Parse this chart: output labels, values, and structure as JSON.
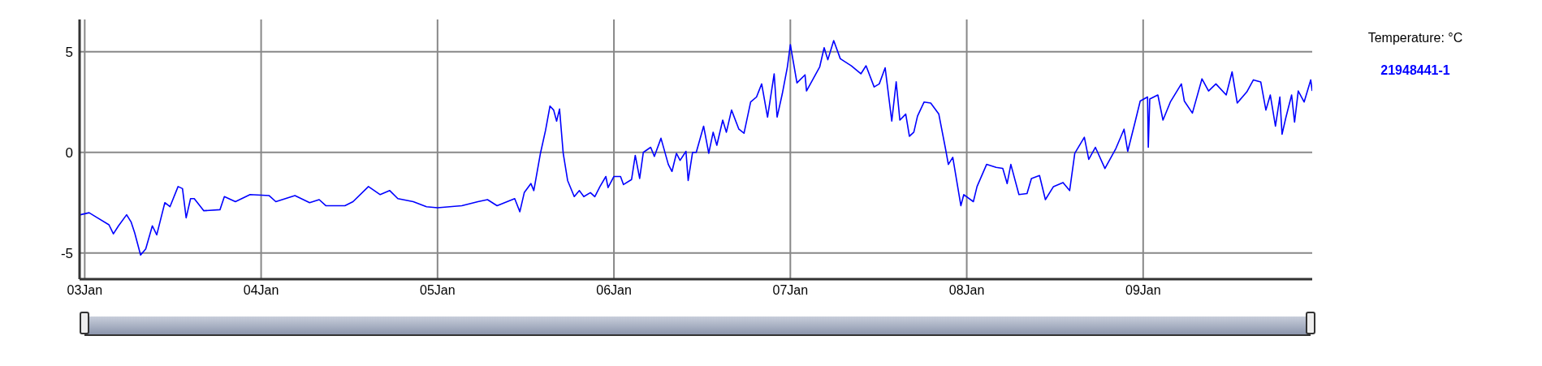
{
  "chart_data": {
    "type": "line",
    "legend_title": "Temperature: °C",
    "x": [
      "--01-02T23:24",
      "--01-03T00:36",
      "--01-03T01:30",
      "--01-03T03:18",
      "--01-03T03:54",
      "--01-03T04:36",
      "--01-03T05:42",
      "--01-03T06:18",
      "--01-03T06:48",
      "--01-03T07:36",
      "--01-03T08:18",
      "--01-03T09:12",
      "--01-03T09:48",
      "--01-03T10:54",
      "--01-03T11:36",
      "--01-03T12:42",
      "--01-03T13:18",
      "--01-03T13:48",
      "--01-03T14:24",
      "--01-03T14:54",
      "--01-03T16:12",
      "--01-03T18:24",
      "--01-03T19:00",
      "--01-03T20:30",
      "--01-03T22:30",
      "--01-04T01:06",
      "--01-04T02:00",
      "--01-04T04:36",
      "--01-04T06:36",
      "--01-04T07:54",
      "--01-04T08:48",
      "--01-04T11:24",
      "--01-04T12:30",
      "--01-04T14:36",
      "--01-04T16:12",
      "--01-04T17:30",
      "--01-04T18:36",
      "--01-04T20:42",
      "--01-04T22:30",
      "--01-05T00:00",
      "--01-05T03:18",
      "--01-05T05:30",
      "--01-05T06:48",
      "--01-05T08:06",
      "--01-05T10:30",
      "--01-05T11:12",
      "--01-05T11:48",
      "--01-05T12:42",
      "--01-05T13:06",
      "--01-05T14:00",
      "--01-05T14:42",
      "--01-05T15:18",
      "--01-05T15:48",
      "--01-05T16:12",
      "--01-05T16:36",
      "--01-05T17:06",
      "--01-05T17:42",
      "--01-05T18:36",
      "--01-05T19:18",
      "--01-05T19:54",
      "--01-05T20:48",
      "--01-05T21:24",
      "--01-05T22:06",
      "--01-05T22:54",
      "--01-05T23:12",
      "--01-06T00:00",
      "--01-06T00:54",
      "--01-06T01:18",
      "--01-06T02:24",
      "--01-06T02:54",
      "--01-06T03:30",
      "--01-06T04:00",
      "--01-06T05:00",
      "--01-06T05:30",
      "--01-06T06:24",
      "--01-06T07:24",
      "--01-06T07:54",
      "--01-06T08:30",
      "--01-06T09:00",
      "--01-06T09:48",
      "--01-06T10:06",
      "--01-06T10:42",
      "--01-06T11:12",
      "--01-06T12:12",
      "--01-06T12:54",
      "--01-06T13:30",
      "--01-06T14:00",
      "--01-06T14:48",
      "--01-06T15:18",
      "--01-06T16:00",
      "--01-06T17:00",
      "--01-06T17:42",
      "--01-06T18:36",
      "--01-06T19:24",
      "--01-06T20:06",
      "--01-06T20:54",
      "--01-06T21:48",
      "--01-06T22:12",
      "--01-06T22:54",
      "--01-06T23:36",
      "--01-07T00:00",
      "--01-07T00:54",
      "--01-07T02:00",
      "--01-07T02:12",
      "--01-07T04:00",
      "--01-07T04:36",
      "--01-07T05:06",
      "--01-07T05:54",
      "--01-07T06:48",
      "--01-07T08:18",
      "--01-07T09:36",
      "--01-07T10:18",
      "--01-07T11:24",
      "--01-07T12:06",
      "--01-07T12:54",
      "--01-07T13:48",
      "--01-07T14:24",
      "--01-07T14:54",
      "--01-07T15:42",
      "--01-07T16:12",
      "--01-07T16:48",
      "--01-07T17:18",
      "--01-07T18:12",
      "--01-07T19:06",
      "--01-07T20:12",
      "--01-07T21:06",
      "--01-07T21:30",
      "--01-07T22:06",
      "--01-07T23:12",
      "--01-07T23:36",
      "--01-08T00:54",
      "--01-08T01:24",
      "--01-08T02:42",
      "--01-08T04:00",
      "--01-08T04:54",
      "--01-08T05:30",
      "--01-08T06:00",
      "--01-08T07:06",
      "--01-08T08:12",
      "--01-08T08:48",
      "--01-08T09:54",
      "--01-08T10:42",
      "--01-08T11:48",
      "--01-08T13:06",
      "--01-08T14:00",
      "--01-08T14:42",
      "--01-08T16:00",
      "--01-08T16:36",
      "--01-08T17:30",
      "--01-08T18:48",
      "--01-08T20:18",
      "--01-08T21:24",
      "--01-08T21:54",
      "--01-08T22:54",
      "--01-08T23:36",
      "--01-09T00:36",
      "--01-09T00:42",
      "--01-09T00:54",
      "--01-09T02:00",
      "--01-09T02:42",
      "--01-09T03:42",
      "--01-09T05:12",
      "--01-09T05:36",
      "--01-09T06:42",
      "--01-09T08:00",
      "--01-09T08:54",
      "--01-09T09:54",
      "--01-09T11:18",
      "--01-09T12:06",
      "--01-09T12:48",
      "--01-09T14:06",
      "--01-09T15:00",
      "--01-09T16:00",
      "--01-09T16:42",
      "--01-09T17:18",
      "--01-09T18:00",
      "--01-09T18:36",
      "--01-09T18:54",
      "--01-09T19:24",
      "--01-09T20:12",
      "--01-09T20:36",
      "--01-09T21:06",
      "--01-09T21:54",
      "--01-09T22:48",
      "--01-09T23:00"
    ],
    "series": [
      {
        "name": "21948441-1",
        "color": "#0000ff",
        "values": [
          -3.1,
          -3.0,
          -3.2,
          -3.6,
          -4.05,
          -3.65,
          -3.1,
          -3.45,
          -4.0,
          -5.1,
          -4.8,
          -3.65,
          -4.1,
          -2.5,
          -2.7,
          -1.7,
          -1.8,
          -3.25,
          -2.3,
          -2.3,
          -2.9,
          -2.85,
          -2.2,
          -2.45,
          -2.1,
          -2.15,
          -2.45,
          -2.15,
          -2.5,
          -2.35,
          -2.65,
          -2.65,
          -2.45,
          -1.7,
          -2.1,
          -1.9,
          -2.3,
          -2.45,
          -2.7,
          -2.75,
          -2.65,
          -2.45,
          -2.35,
          -2.65,
          -2.3,
          -2.95,
          -2.0,
          -1.55,
          -1.9,
          -0.05,
          1.1,
          2.3,
          2.1,
          1.55,
          2.15,
          -0.05,
          -1.4,
          -2.2,
          -1.9,
          -2.2,
          -2.0,
          -2.2,
          -1.7,
          -1.2,
          -1.75,
          -1.2,
          -1.2,
          -1.6,
          -1.35,
          -0.15,
          -1.3,
          0,
          0.25,
          -0.2,
          0.7,
          -0.6,
          -0.95,
          -0.05,
          -0.4,
          0.05,
          -1.4,
          0,
          0,
          1.3,
          -0.05,
          1.0,
          0.35,
          1.6,
          1.0,
          2.1,
          1.15,
          0.95,
          2.5,
          2.75,
          3.4,
          1.75,
          3.9,
          1.75,
          2.9,
          4.25,
          5.35,
          3.45,
          3.85,
          3.05,
          4.25,
          5.2,
          4.6,
          5.55,
          4.65,
          4.3,
          3.9,
          4.3,
          3.25,
          3.4,
          4.2,
          1.55,
          3.5,
          1.6,
          1.9,
          0.8,
          1.0,
          1.8,
          2.5,
          2.45,
          1.9,
          0.2,
          -0.6,
          -0.25,
          -2.65,
          -2.1,
          -2.45,
          -1.7,
          -0.6,
          -0.75,
          -0.8,
          -1.55,
          -0.6,
          -2.1,
          -2.05,
          -1.3,
          -1.15,
          -2.35,
          -1.7,
          -1.5,
          -1.9,
          -0.05,
          0.75,
          -0.35,
          0.25,
          -0.8,
          0.2,
          1.15,
          0.05,
          1.5,
          2.55,
          2.75,
          0.25,
          2.65,
          2.85,
          1.6,
          2.5,
          3.4,
          2.55,
          1.95,
          3.65,
          3.05,
          3.4,
          2.85,
          4.0,
          2.45,
          3.0,
          3.6,
          3.5,
          2.1,
          2.85,
          1.3,
          2.75,
          0.9,
          1.7,
          2.85,
          1.5,
          3.05,
          2.5,
          3.6,
          3.05
        ]
      }
    ],
    "xlim": [
      "--01-02T23:18",
      "--01-09T23:00"
    ],
    "xticks": [
      {
        "value": "--01-03",
        "label": "03Jan"
      },
      {
        "value": "--01-04",
        "label": "04Jan"
      },
      {
        "value": "--01-05",
        "label": "05Jan"
      },
      {
        "value": "--01-06",
        "label": "06Jan"
      },
      {
        "value": "--01-07",
        "label": "07Jan"
      },
      {
        "value": "--01-08",
        "label": "08Jan"
      },
      {
        "value": "--01-09",
        "label": "09Jan"
      }
    ],
    "ylim": [
      -6.3,
      6.6
    ],
    "yticks": [
      -5,
      0,
      5
    ],
    "grid": true,
    "legend": "right"
  }
}
